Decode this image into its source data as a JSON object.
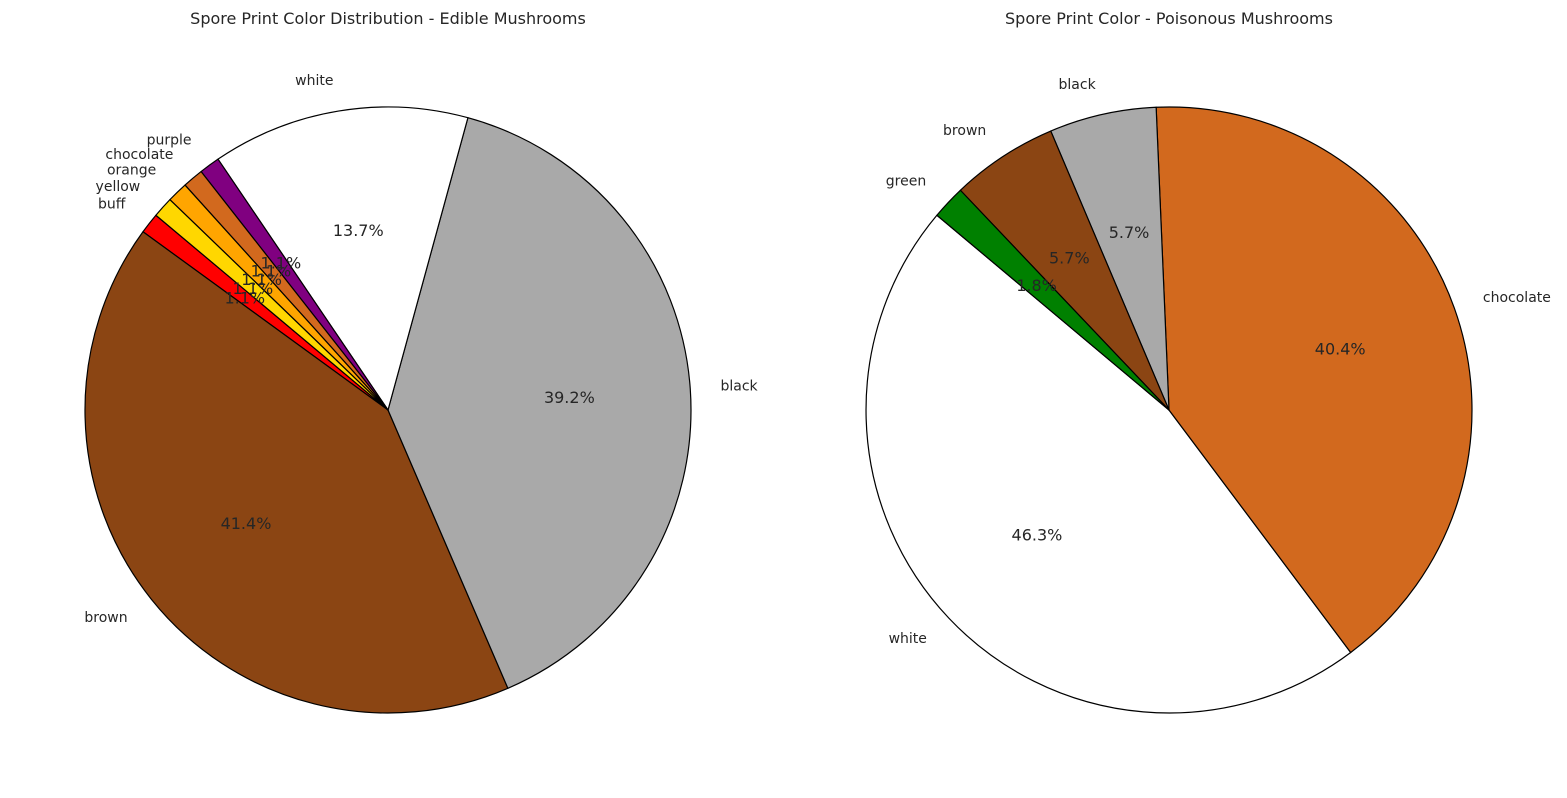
{
  "chart_data": [
    {
      "type": "pie",
      "title": "Spore Print Color Distribution - Edible Mushrooms",
      "start_angle_deg": 140,
      "direction": "counterclockwise",
      "edgecolor": "#000000",
      "slices": [
        {
          "label": "buff",
          "value": 1.1,
          "pct_label": "1.1%",
          "color": "#ff0000"
        },
        {
          "label": "brown",
          "value": 41.4,
          "pct_label": "41.4%",
          "color": "#8b4513"
        },
        {
          "label": "black",
          "value": 39.2,
          "pct_label": "39.2%",
          "color": "#a9a9a9"
        },
        {
          "label": "white",
          "value": 13.7,
          "pct_label": "13.7%",
          "color": "#ffffff"
        },
        {
          "label": "purple",
          "value": 1.1,
          "pct_label": "1.1%",
          "color": "#800080"
        },
        {
          "label": "chocolate",
          "value": 1.1,
          "pct_label": "1.1%",
          "color": "#d2691e"
        },
        {
          "label": "orange",
          "value": 1.1,
          "pct_label": "1.1%",
          "color": "#ffa500"
        },
        {
          "label": "yellow",
          "value": 1.1,
          "pct_label": "1.1%",
          "color": "#ffd700"
        }
      ]
    },
    {
      "type": "pie",
      "title": "Spore Print Color - Poisonous Mushrooms",
      "start_angle_deg": 140,
      "direction": "counterclockwise",
      "edgecolor": "#000000",
      "slices": [
        {
          "label": "white",
          "value": 46.3,
          "pct_label": "46.3%",
          "color": "#ffffff"
        },
        {
          "label": "chocolate",
          "value": 40.4,
          "pct_label": "40.4%",
          "color": "#d2691e"
        },
        {
          "label": "black",
          "value": 5.7,
          "pct_label": "5.7%",
          "color": "#a9a9a9"
        },
        {
          "label": "brown",
          "value": 5.7,
          "pct_label": "5.7%",
          "color": "#8b4513"
        },
        {
          "label": "green",
          "value": 1.8,
          "pct_label": "1.8%",
          "color": "#008000"
        }
      ]
    }
  ]
}
